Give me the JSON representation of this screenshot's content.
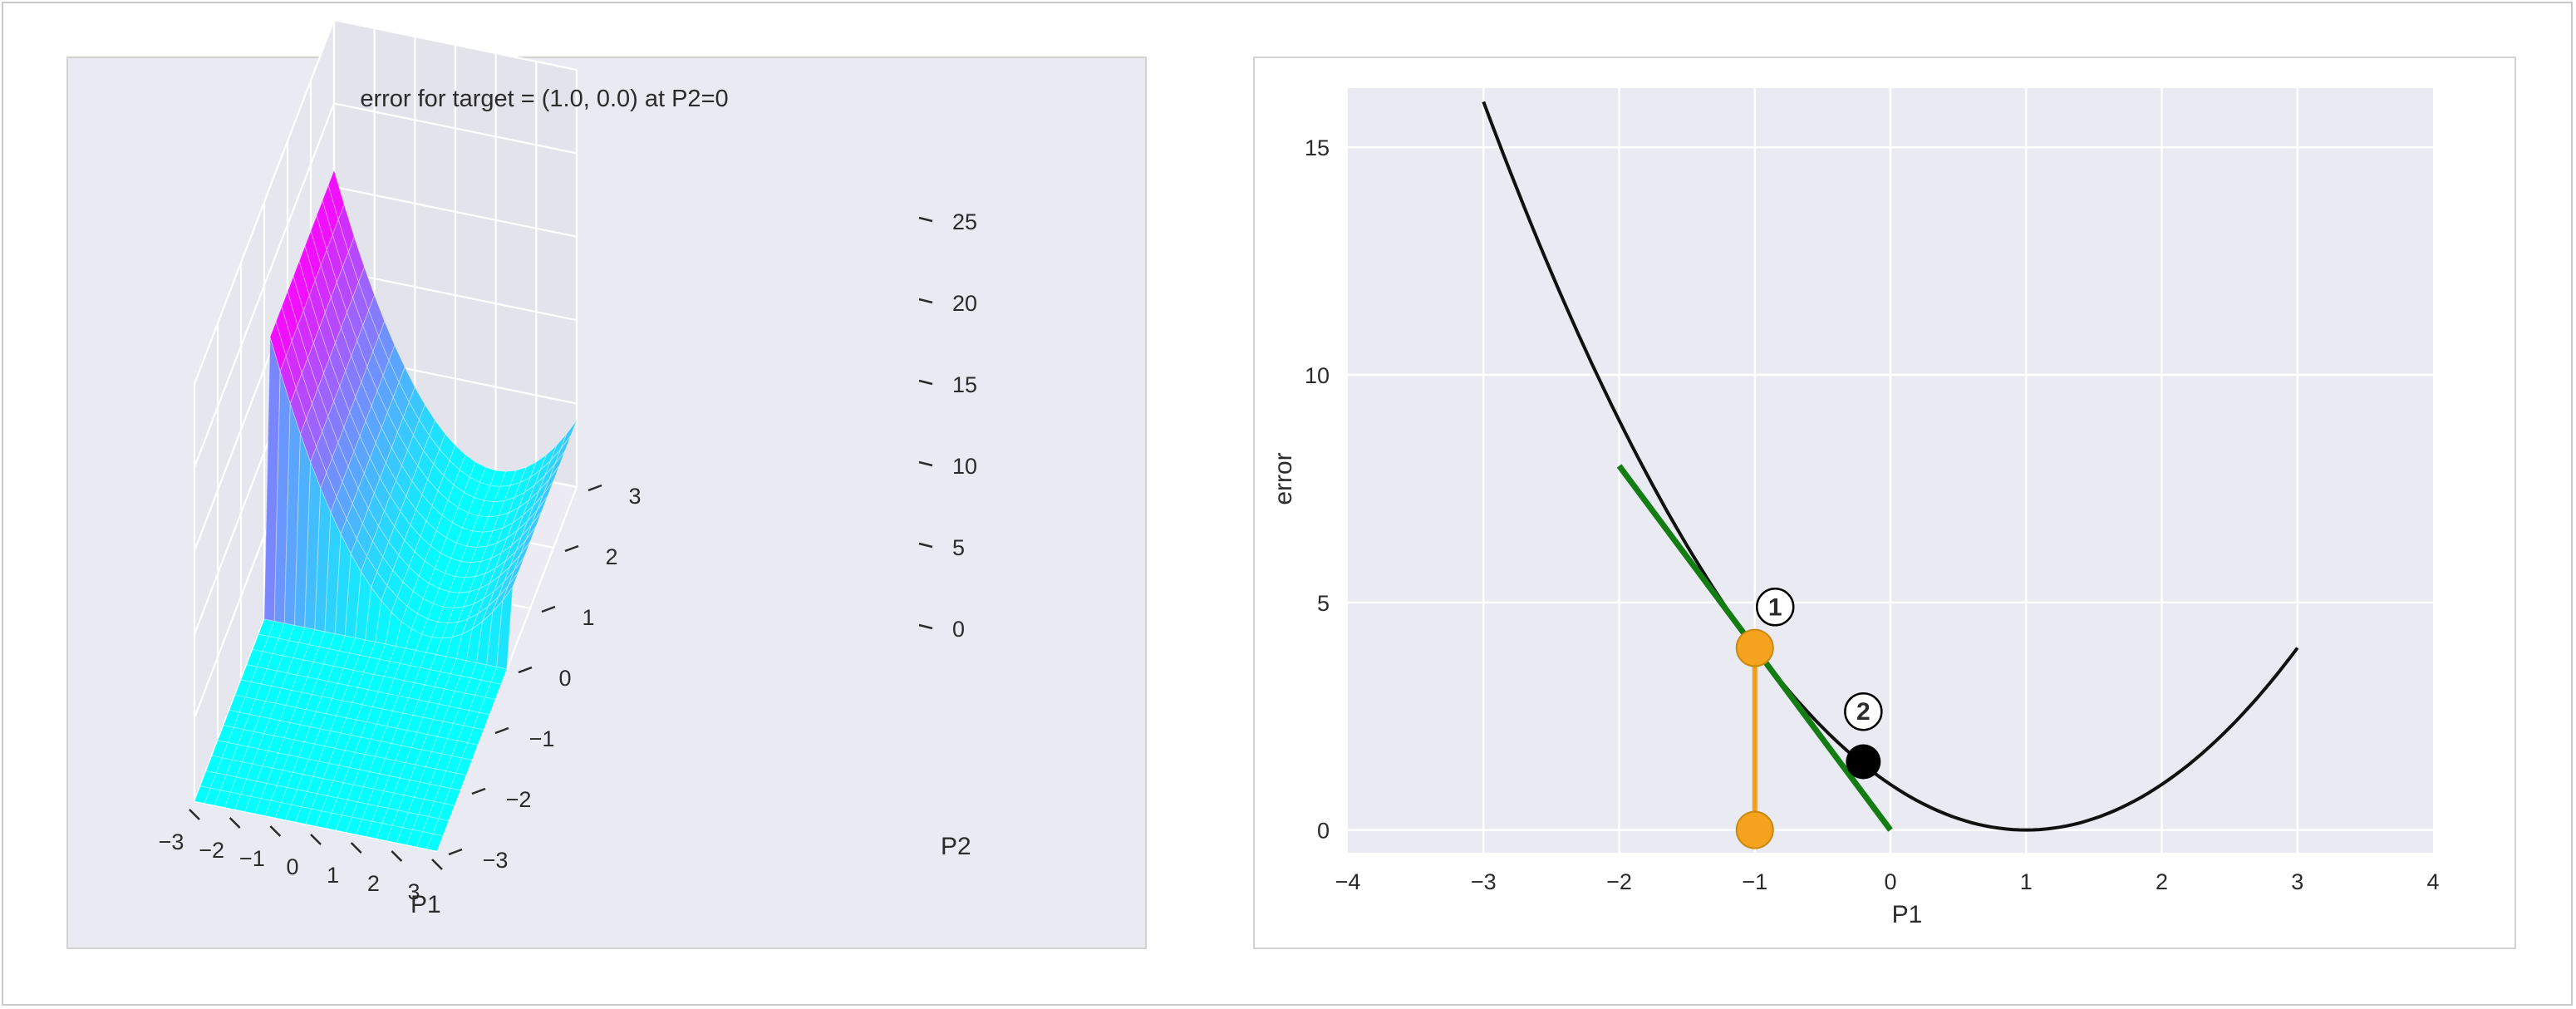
{
  "chart_data": [
    {
      "type": "surface",
      "title": "error for target = (1.0, 0.0) at P2=0",
      "xlabel": "P1",
      "ylabel": "P2",
      "zlabel": "",
      "x_ticks": [
        "−3",
        "−2",
        "−1",
        "0",
        "1",
        "2",
        "3"
      ],
      "y_ticks": [
        "−3",
        "−2",
        "−1",
        "0",
        "1",
        "2",
        "3"
      ],
      "z_ticks": [
        "0",
        "5",
        "10",
        "15",
        "20",
        "25"
      ],
      "xlim": [
        -3,
        3
      ],
      "ylim": [
        -3,
        3
      ],
      "zlim": [
        0,
        25
      ],
      "function": "error = (P1 - 1)^2 for P2 > 0, 0 for P2 <= 0",
      "colormap": "cool",
      "grid": true,
      "colors": {
        "low": "#00ffff",
        "high": "#ff00ff",
        "background": "#eaeaf2"
      }
    },
    {
      "type": "line",
      "title": "",
      "xlabel": "P1",
      "ylabel": "error",
      "xlim": [
        -4,
        4
      ],
      "ylim": [
        -0.5,
        16.3
      ],
      "x_ticks": [
        "−4",
        "−3",
        "−2",
        "−1",
        "0",
        "1",
        "2",
        "3",
        "4"
      ],
      "y_ticks": [
        "0",
        "5",
        "10",
        "15"
      ],
      "grid": true,
      "series": [
        {
          "function": "(P1 - 1)^2",
          "x": [
            -3,
            -2.5,
            -2,
            -1.5,
            -1,
            -0.5,
            0,
            0.5,
            1,
            1.5,
            2,
            2.5,
            3
          ],
          "y": [
            16,
            12.25,
            9,
            6.25,
            4,
            2.25,
            1,
            0.25,
            0,
            0.25,
            1,
            2.25,
            4
          ],
          "color": "#111111"
        },
        {
          "x": [
            -2,
            0
          ],
          "y": [
            8,
            0
          ],
          "color": "#137d13"
        },
        {
          "x": [
            -1,
            -1
          ],
          "y": [
            0,
            4
          ],
          "color": "#f0a01e"
        }
      ],
      "points": [
        {
          "x": -1,
          "y": 4,
          "color": "#f5a21e"
        },
        {
          "x": -1,
          "y": 0,
          "color": "#f5a21e"
        },
        {
          "x": -0.2,
          "y": 1.5,
          "color": "#000000"
        }
      ],
      "annotations": [
        {
          "text": "1",
          "x": -0.85,
          "y": 4.9
        },
        {
          "text": "2",
          "x": -0.2,
          "y": 2.6
        }
      ]
    }
  ]
}
